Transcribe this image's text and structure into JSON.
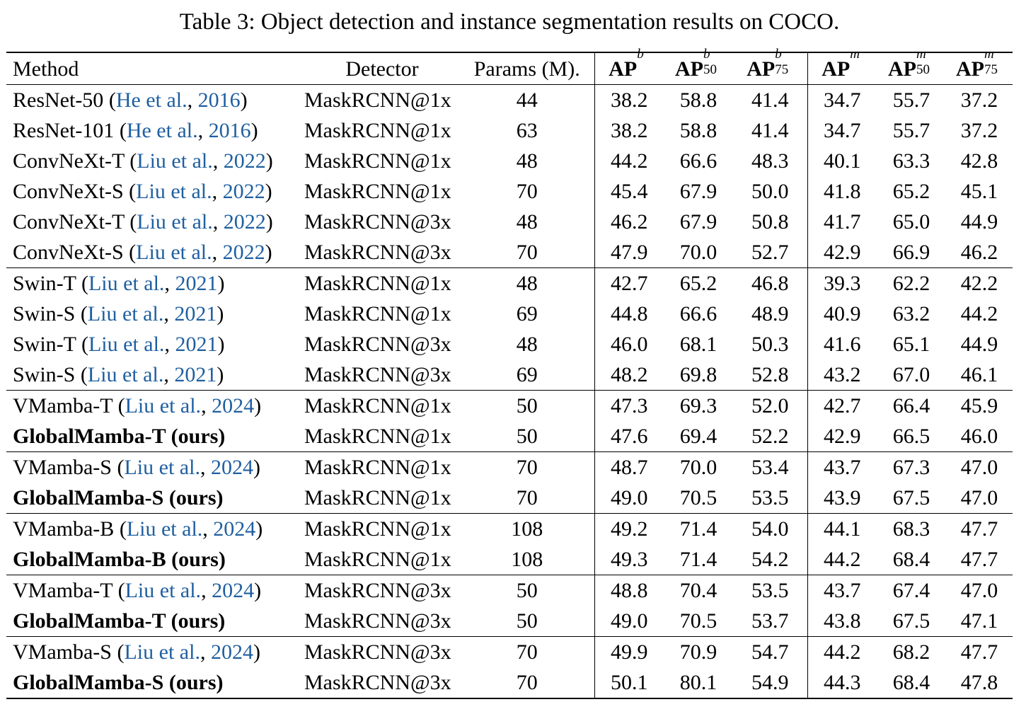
{
  "caption": "Table 3: Object detection and instance segmentation results on COCO.",
  "headers": {
    "method": "Method",
    "detector": "Detector",
    "params": "Params (M).",
    "apb": {
      "base": "AP",
      "sup": "b",
      "sub": ""
    },
    "apb50": {
      "base": "AP",
      "sup": "b",
      "sub": "50"
    },
    "apb75": {
      "base": "AP",
      "sup": "b",
      "sub": "75"
    },
    "apm": {
      "base": "AP",
      "sup": "m",
      "sub": ""
    },
    "apm50": {
      "base": "AP",
      "sup": "m",
      "sub": "50"
    },
    "apm75": {
      "base": "AP",
      "sup": "m",
      "sub": "75"
    }
  },
  "rows": [
    {
      "name": "ResNet-50",
      "ref_author": "He et al.",
      "ref_year": "2016",
      "detector": "MaskRCNN@1x",
      "params": "44",
      "vals": [
        "38.2",
        "58.8",
        "41.4",
        "34.7",
        "55.7",
        "37.2"
      ],
      "bold": false
    },
    {
      "name": "ResNet-101",
      "ref_author": "He et al.",
      "ref_year": "2016",
      "detector": "MaskRCNN@1x",
      "params": "63",
      "vals": [
        "38.2",
        "58.8",
        "41.4",
        "34.7",
        "55.7",
        "37.2"
      ],
      "bold": false
    },
    {
      "name": "ConvNeXt-T",
      "ref_author": "Liu et al.",
      "ref_year": "2022",
      "detector": "MaskRCNN@1x",
      "params": "48",
      "vals": [
        "44.2",
        "66.6",
        "48.3",
        "40.1",
        "63.3",
        "42.8"
      ],
      "bold": false
    },
    {
      "name": "ConvNeXt-S",
      "ref_author": "Liu et al.",
      "ref_year": "2022",
      "detector": "MaskRCNN@1x",
      "params": "70",
      "vals": [
        "45.4",
        "67.9",
        "50.0",
        "41.8",
        "65.2",
        "45.1"
      ],
      "bold": false
    },
    {
      "name": "ConvNeXt-T",
      "ref_author": "Liu et al.",
      "ref_year": "2022",
      "detector": "MaskRCNN@3x",
      "params": "48",
      "vals": [
        "46.2",
        "67.9",
        "50.8",
        "41.7",
        "65.0",
        "44.9"
      ],
      "bold": false
    },
    {
      "name": "ConvNeXt-S",
      "ref_author": "Liu et al.",
      "ref_year": "2022",
      "detector": "MaskRCNN@3x",
      "params": "70",
      "vals": [
        "47.9",
        "70.0",
        "52.7",
        "42.9",
        "66.9",
        "46.2"
      ],
      "bold": false
    },
    {
      "name": "Swin-T",
      "ref_author": "Liu et al.",
      "ref_year": "2021",
      "detector": "MaskRCNN@1x",
      "params": "48",
      "vals": [
        "42.7",
        "65.2",
        "46.8",
        "39.3",
        "62.2",
        "42.2"
      ],
      "bold": false,
      "group_start": true
    },
    {
      "name": "Swin-S",
      "ref_author": "Liu et al.",
      "ref_year": "2021",
      "detector": "MaskRCNN@1x",
      "params": "69",
      "vals": [
        "44.8",
        "66.6",
        "48.9",
        "40.9",
        "63.2",
        "44.2"
      ],
      "bold": false
    },
    {
      "name": "Swin-T",
      "ref_author": "Liu et al.",
      "ref_year": "2021",
      "detector": "MaskRCNN@3x",
      "params": "48",
      "vals": [
        "46.0",
        "68.1",
        "50.3",
        "41.6",
        "65.1",
        "44.9"
      ],
      "bold": false
    },
    {
      "name": "Swin-S",
      "ref_author": "Liu et al.",
      "ref_year": "2021",
      "detector": "MaskRCNN@3x",
      "params": "69",
      "vals": [
        "48.2",
        "69.8",
        "52.8",
        "43.2",
        "67.0",
        "46.1"
      ],
      "bold": false
    },
    {
      "name": "VMamba-T",
      "ref_author": "Liu et al.",
      "ref_year": "2024",
      "detector": "MaskRCNN@1x",
      "params": "50",
      "vals": [
        "47.3",
        "69.3",
        "52.0",
        "42.7",
        "66.4",
        "45.9"
      ],
      "bold": false,
      "group_start": true
    },
    {
      "name": "GlobalMamba-T (ours)",
      "ref_author": "",
      "ref_year": "",
      "detector": "MaskRCNN@1x",
      "params": "50",
      "vals": [
        "47.6",
        "69.4",
        "52.2",
        "42.9",
        "66.5",
        "46.0"
      ],
      "bold": true
    },
    {
      "name": "VMamba-S",
      "ref_author": "Liu et al.",
      "ref_year": "2024",
      "detector": "MaskRCNN@1x",
      "params": "70",
      "vals": [
        "48.7",
        "70.0",
        "53.4",
        "43.7",
        "67.3",
        "47.0"
      ],
      "bold": false,
      "group_start": true
    },
    {
      "name": "GlobalMamba-S (ours)",
      "ref_author": "",
      "ref_year": "",
      "detector": "MaskRCNN@1x",
      "params": "70",
      "vals": [
        "49.0",
        "70.5",
        "53.5",
        "43.9",
        "67.5",
        "47.0"
      ],
      "bold": true
    },
    {
      "name": "VMamba-B",
      "ref_author": "Liu et al.",
      "ref_year": "2024",
      "detector": "MaskRCNN@1x",
      "params": "108",
      "vals": [
        "49.2",
        "71.4",
        "54.0",
        "44.1",
        "68.3",
        "47.7"
      ],
      "bold": false,
      "group_start": true
    },
    {
      "name": "GlobalMamba-B (ours)",
      "ref_author": "",
      "ref_year": "",
      "detector": "MaskRCNN@1x",
      "params": "108",
      "vals": [
        "49.3",
        "71.4",
        "54.2",
        "44.2",
        "68.4",
        "47.7"
      ],
      "bold": true
    },
    {
      "name": "VMamba-T",
      "ref_author": "Liu et al.",
      "ref_year": "2024",
      "detector": "MaskRCNN@3x",
      "params": "50",
      "vals": [
        "48.8",
        "70.4",
        "53.5",
        "43.7",
        "67.4",
        "47.0"
      ],
      "bold": false,
      "group_start": true
    },
    {
      "name": "GlobalMamba-T (ours)",
      "ref_author": "",
      "ref_year": "",
      "detector": "MaskRCNN@3x",
      "params": "50",
      "vals": [
        "49.0",
        "70.5",
        "53.7",
        "43.8",
        "67.5",
        "47.1"
      ],
      "bold": true
    },
    {
      "name": "VMamba-S",
      "ref_author": "Liu et al.",
      "ref_year": "2024",
      "detector": "MaskRCNN@3x",
      "params": "70",
      "vals": [
        "49.9",
        "70.9",
        "54.7",
        "44.2",
        "68.2",
        "47.7"
      ],
      "bold": false,
      "group_start": true
    },
    {
      "name": "GlobalMamba-S (ours)",
      "ref_author": "",
      "ref_year": "",
      "detector": "MaskRCNN@3x",
      "params": "70",
      "vals": [
        "50.1",
        "80.1",
        "54.9",
        "44.3",
        "68.4",
        "47.8"
      ],
      "bold": true
    }
  ],
  "colors": {
    "link": "#1f5fa0",
    "text": "#000000"
  }
}
